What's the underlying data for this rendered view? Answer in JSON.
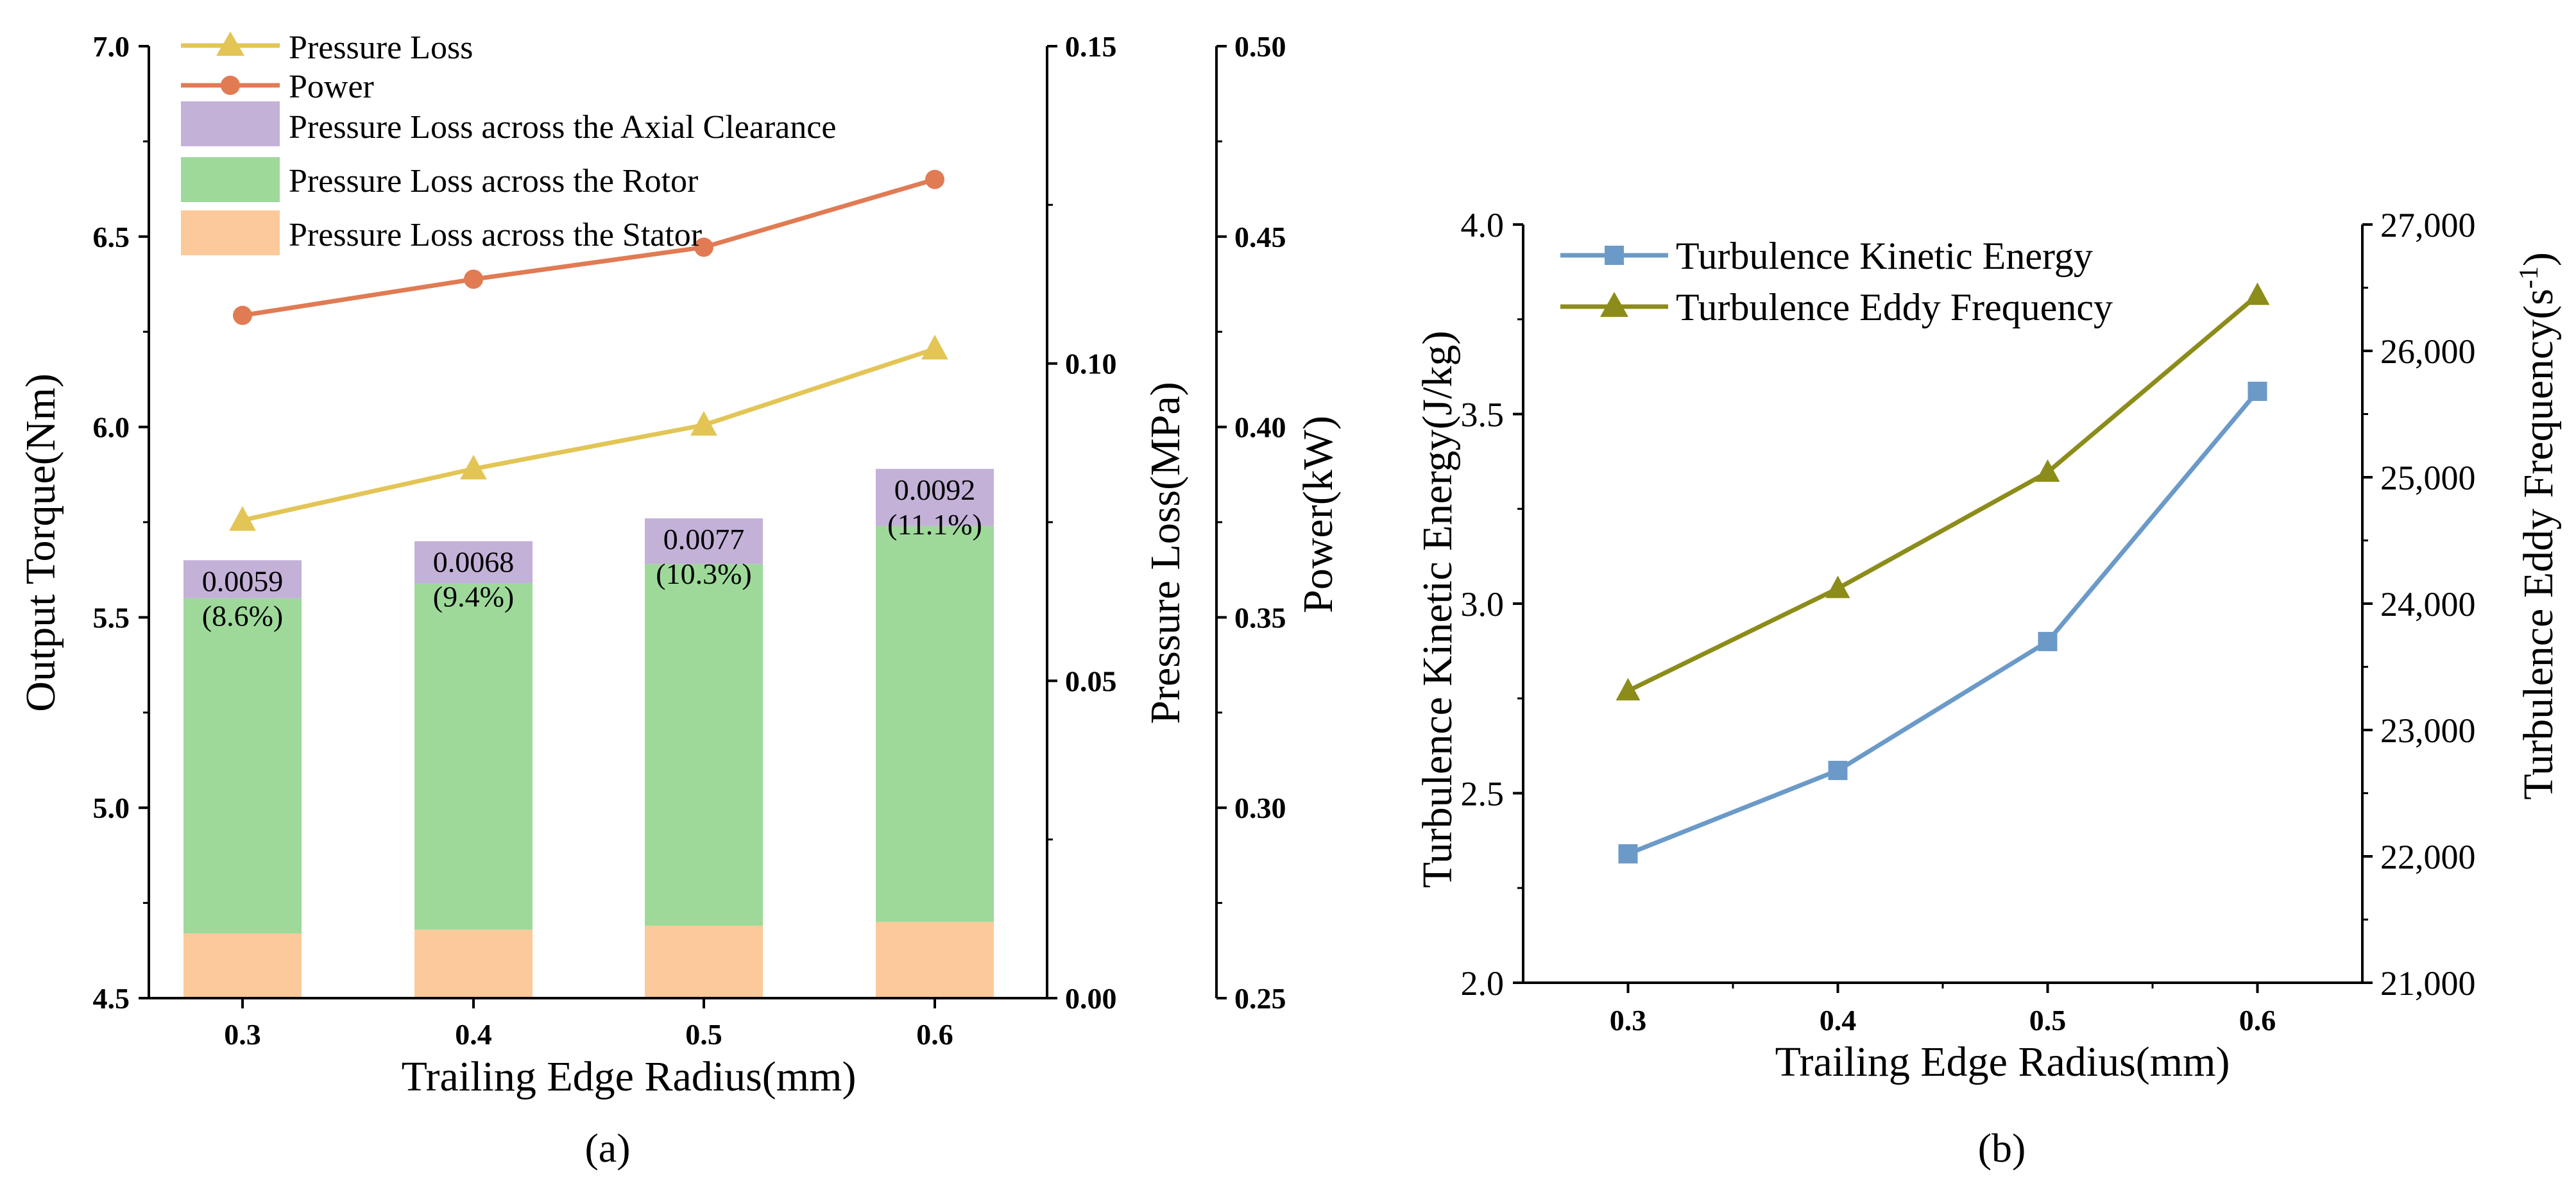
{
  "chart_data": [
    {
      "type": "bar+line",
      "panel_label": "(a)",
      "xlabel": "Trailing Edge Radius(mm)",
      "categories": [
        "0.3",
        "0.4",
        "0.5",
        "0.6"
      ],
      "y_left": {
        "label": "Output Torque(Nm)",
        "range": [
          4.5,
          7.0
        ],
        "ticks": [
          "4.5",
          "5.0",
          "5.5",
          "6.0",
          "6.5",
          "7.0"
        ]
      },
      "y_right1": {
        "label": "Pressure Loss(MPa)",
        "range": [
          0.0,
          0.15
        ],
        "ticks": [
          "0.00",
          "0.05",
          "0.10",
          "0.15"
        ]
      },
      "y_right2": {
        "label": "Power(kW)",
        "range": [
          0.25,
          0.5
        ],
        "ticks": [
          "0.25",
          "0.30",
          "0.35",
          "0.40",
          "0.45",
          "0.50"
        ]
      },
      "stacked_bars": {
        "axis": "y_left",
        "series": [
          {
            "name": "Pressure Loss across the Stator",
            "color": "#fcc99a",
            "values": [
              0.17,
              0.18,
              0.19,
              0.2
            ]
          },
          {
            "name": "Pressure Loss across the Rotor",
            "color": "#9ed99a",
            "values": [
              0.88,
              0.91,
              0.95,
              1.04
            ]
          },
          {
            "name": "Pressure Loss across the Axial Clearance",
            "color": "#c3b1d8",
            "values": [
              0.1,
              0.11,
              0.12,
              0.15
            ]
          }
        ],
        "annotations": [
          {
            "value": "0.0059",
            "percent": "(8.6%)"
          },
          {
            "value": "0.0068",
            "percent": "(9.4%)"
          },
          {
            "value": "0.0077",
            "percent": "(10.3%)"
          },
          {
            "value": "0.0092",
            "percent": "(11.1%)"
          }
        ]
      },
      "lines": [
        {
          "name": "Pressure Loss",
          "axis": "y_right1",
          "color": "#e3c556",
          "marker": "triangle",
          "values": [
            0.0753,
            0.0834,
            0.0903,
            0.1023
          ]
        },
        {
          "name": "Power",
          "axis": "y_right2",
          "color": "#e07b54",
          "marker": "circle",
          "values": [
            0.4293,
            0.4388,
            0.4472,
            0.465
          ]
        }
      ],
      "legend": [
        {
          "label": "Pressure Loss",
          "kind": "line",
          "marker": "triangle",
          "color": "#e3c556"
        },
        {
          "label": "Power",
          "kind": "line",
          "marker": "circle",
          "color": "#e07b54"
        },
        {
          "label": "Pressure Loss across the Axial Clearance",
          "kind": "patch",
          "color": "#c3b1d8"
        },
        {
          "label": "Pressure Loss across the Rotor",
          "kind": "patch",
          "color": "#9ed99a"
        },
        {
          "label": "Pressure Loss across the Stator",
          "kind": "patch",
          "color": "#fcc99a"
        }
      ]
    },
    {
      "type": "line",
      "panel_label": "(b)",
      "xlabel": "Trailing Edge Radius(mm)",
      "x": [
        0.3,
        0.4,
        0.5,
        0.6
      ],
      "x_ticks": [
        "0.3",
        "0.4",
        "0.5",
        "0.6"
      ],
      "xlim": [
        0.25,
        0.65
      ],
      "y_left": {
        "label": "Turbulence Kinetic Energy(J/kg)",
        "range": [
          2.0,
          4.0
        ],
        "ticks": [
          "2.0",
          "2.5",
          "3.0",
          "3.5",
          "4.0"
        ]
      },
      "y_right": {
        "label_main": "Turbulence Eddy Frequency(s",
        "label_sup": "-1",
        "label_end": ")",
        "range": [
          21000,
          27000
        ],
        "ticks": [
          "21,000",
          "22,000",
          "23,000",
          "24,000",
          "25,000",
          "26,000",
          "27,000"
        ]
      },
      "series": [
        {
          "name": "Turbulence Kinetic Energy",
          "axis": "y_left",
          "color": "#6b9ac8",
          "marker": "square",
          "values": [
            2.34,
            2.56,
            2.9,
            3.56
          ]
        },
        {
          "name": "Turbulence Eddy Frequency",
          "axis": "y_right",
          "color": "#8c8c1a",
          "marker": "triangle",
          "values": [
            23310,
            24120,
            25040,
            26440
          ]
        }
      ]
    }
  ]
}
